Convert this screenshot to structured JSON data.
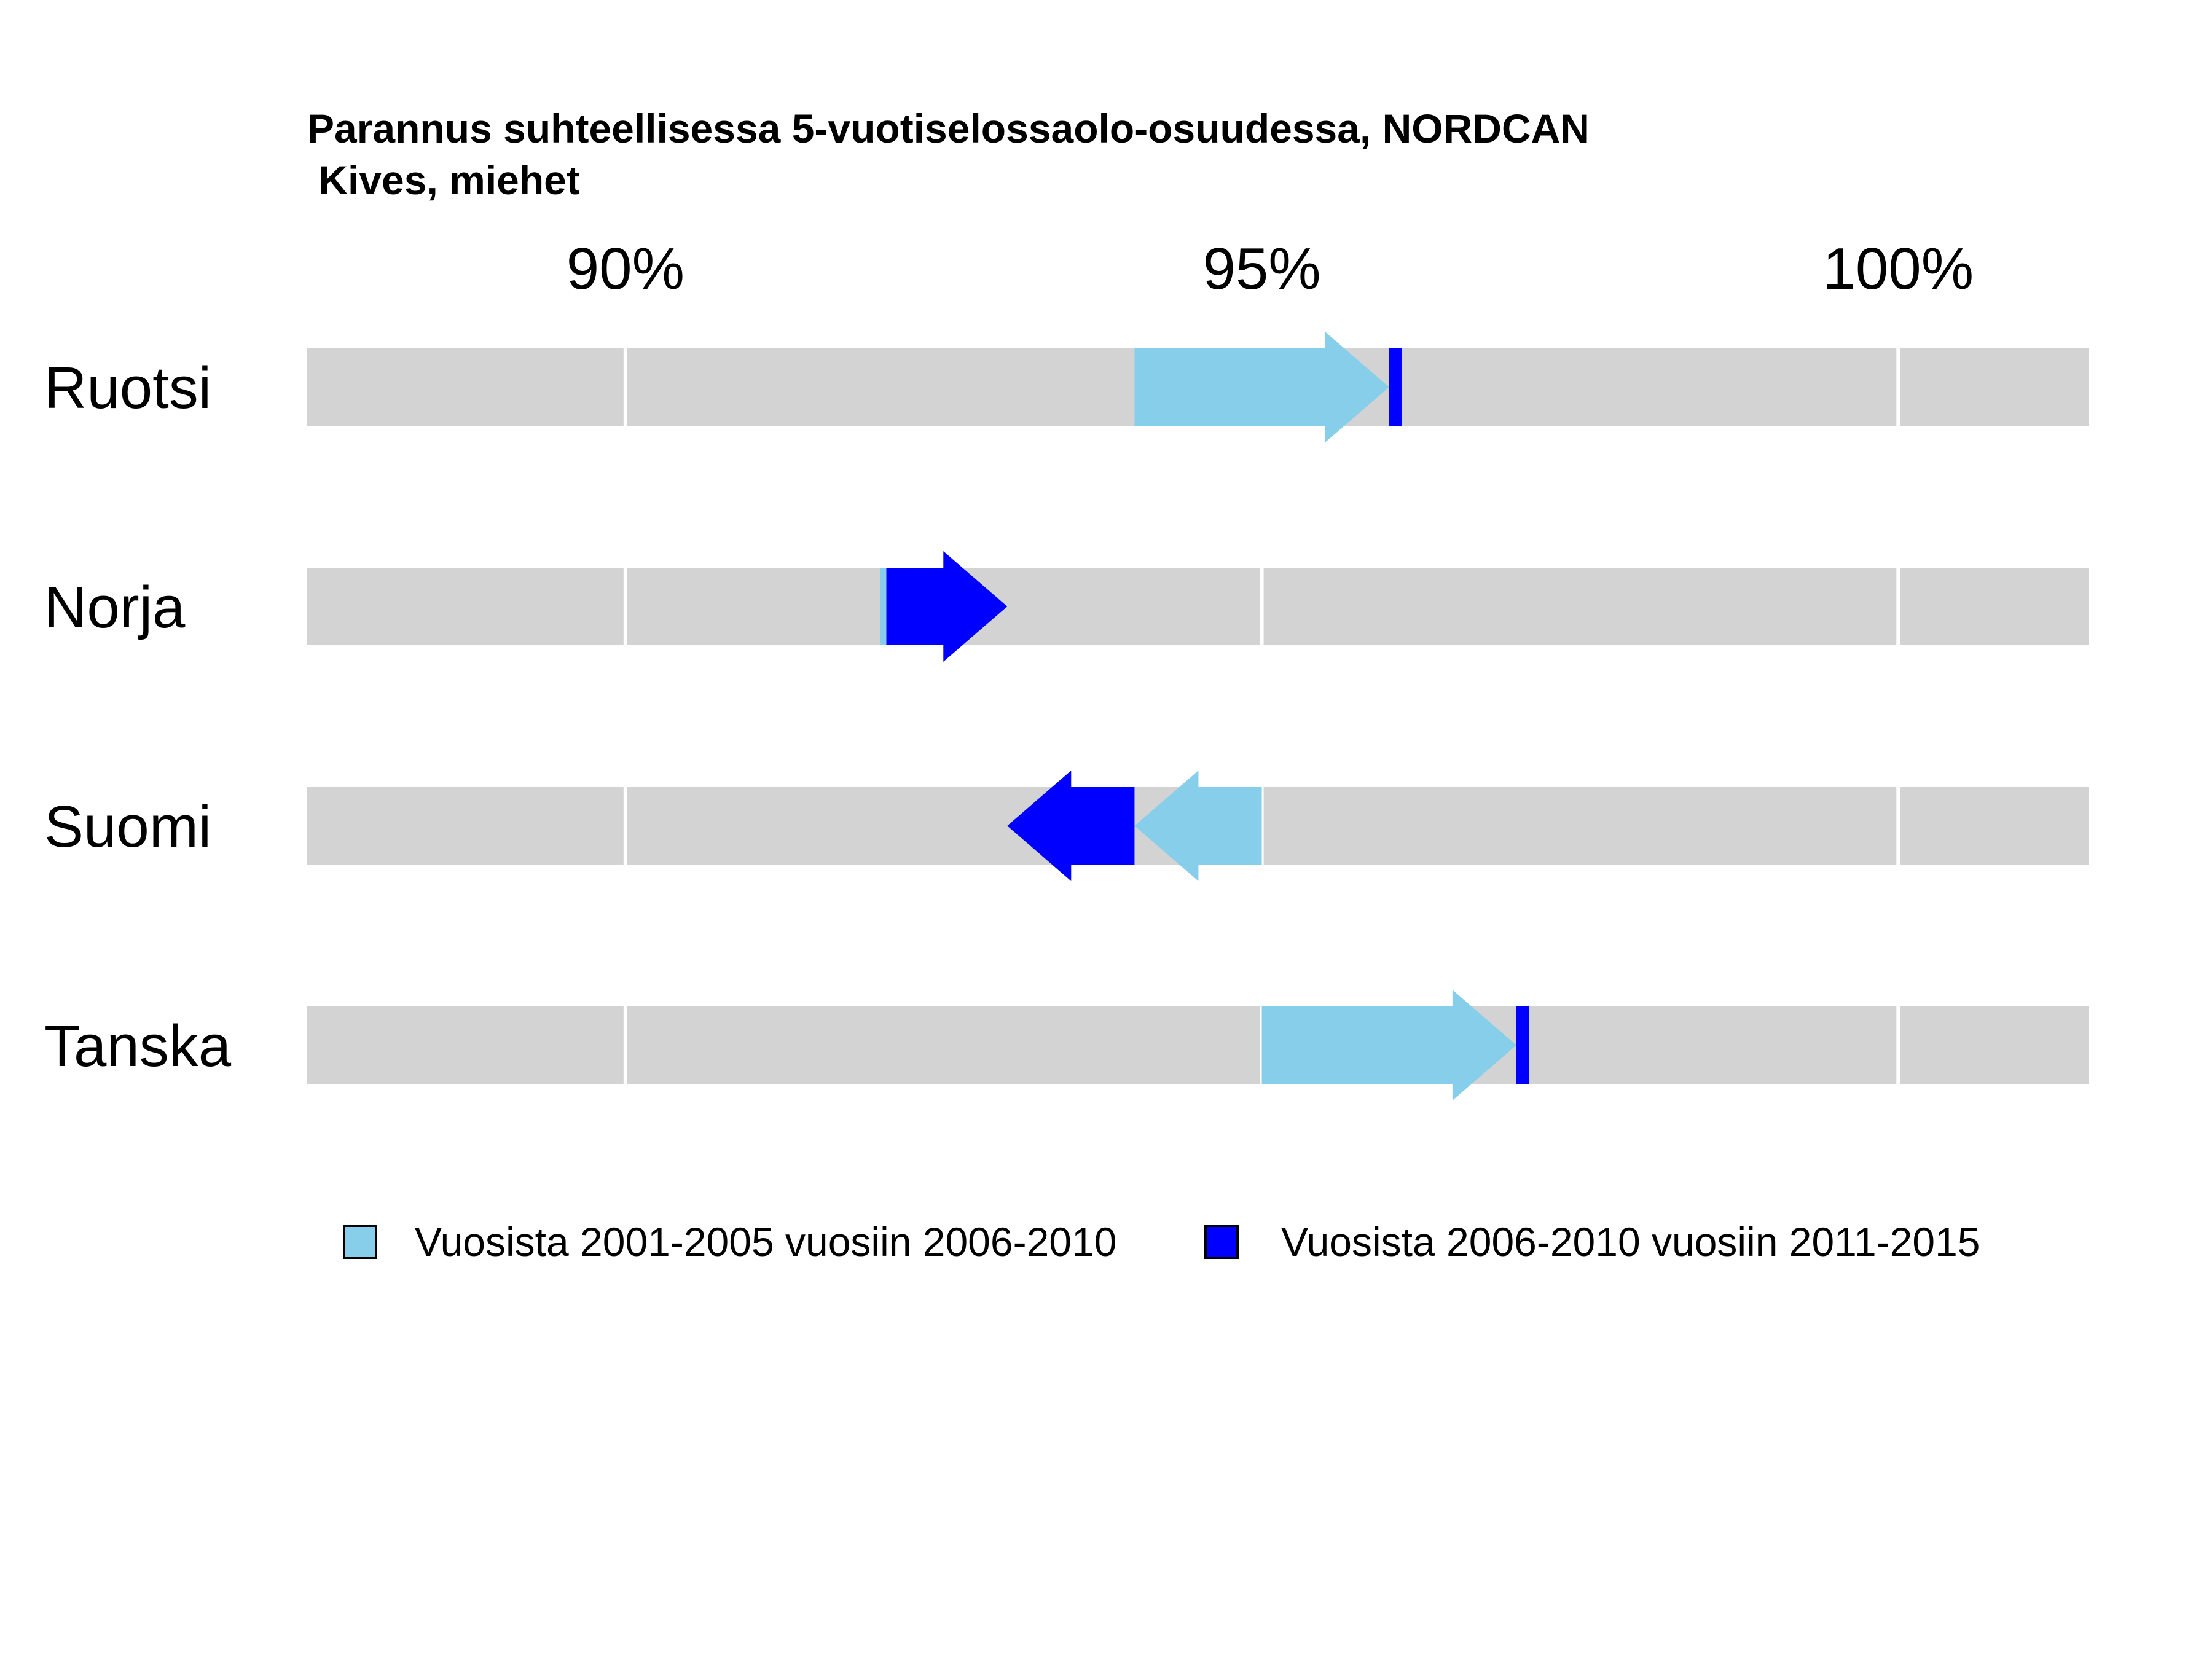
{
  "chart_data": {
    "type": "arrow-dumbbell",
    "title": "Parannus suhteellisessa 5-vuotiselossaolo-osuudessa, NORDCAN",
    "subtitle": " Kives, miehet",
    "xlim": [
      87.5,
      101.5
    ],
    "x_ticks": [
      {
        "value": 90,
        "label": "90%"
      },
      {
        "value": 95,
        "label": "95%"
      },
      {
        "value": 100,
        "label": "100%"
      }
    ],
    "categories": [
      "Ruotsi",
      "Norja",
      "Suomi",
      "Tanska"
    ],
    "series": [
      {
        "name": "Vuosista 2001-2005 vuosiin 2006-2010",
        "color": "#87CEEB",
        "from": [
          94.0,
          92.0,
          95.0,
          95.0
        ],
        "to": [
          96.0,
          92.05,
          94.0,
          97.0
        ]
      },
      {
        "name": "Vuosista 2006-2010 vuosiin 2011-2015",
        "color": "#0000FF",
        "from": [
          96.0,
          92.05,
          94.0,
          97.0
        ],
        "to": [
          96.1,
          93.0,
          93.0,
          97.1
        ]
      }
    ],
    "track_color": "#D3D3D3",
    "grid": true,
    "legend_position": "bottom"
  }
}
